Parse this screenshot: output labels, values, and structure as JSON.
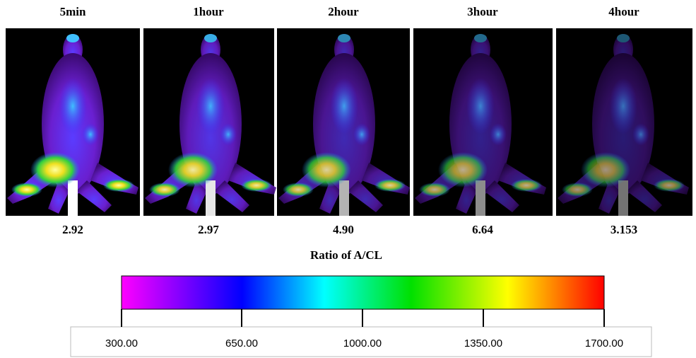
{
  "panels": [
    {
      "label": "5min",
      "ratio": "2.92"
    },
    {
      "label": "1hour",
      "ratio": "2.97"
    },
    {
      "label": "2hour",
      "ratio": "4.90"
    },
    {
      "label": "3hour",
      "ratio": "6.64"
    },
    {
      "label": "4hour",
      "ratio": "3.153"
    }
  ],
  "ratio_label": "Ratio of A/CL",
  "colorbar": {
    "ticks": [
      "300.00",
      "650.00",
      "1000.00",
      "1350.00",
      "1700.00"
    ]
  }
}
